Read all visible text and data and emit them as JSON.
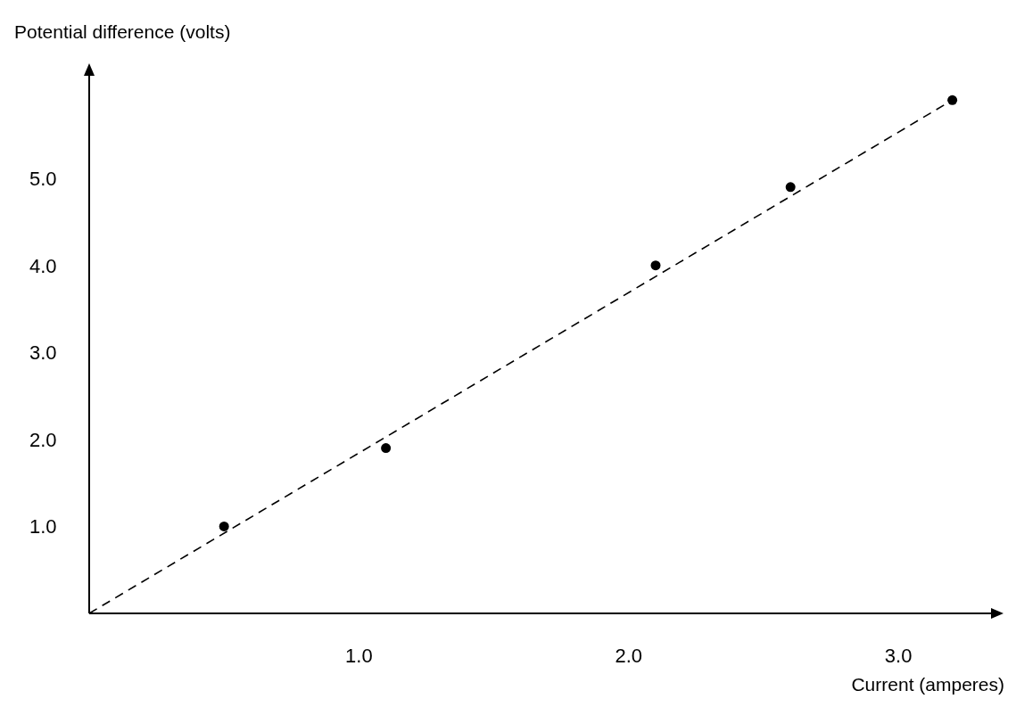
{
  "chart_data": {
    "type": "scatter",
    "xlabel": "Current (amperes)",
    "ylabel": "Potential difference (volts)",
    "xlim": [
      0,
      3.35
    ],
    "ylim": [
      0,
      6.2
    ],
    "xticks": [
      {
        "value": 1,
        "label": "1.0"
      },
      {
        "value": 2,
        "label": "2.0"
      },
      {
        "value": 3,
        "label": "3.0"
      }
    ],
    "yticks": [
      {
        "value": 1,
        "label": "1.0"
      },
      {
        "value": 2,
        "label": "2.0"
      },
      {
        "value": 3,
        "label": "3.0"
      },
      {
        "value": 4,
        "label": "4.0"
      },
      {
        "value": 5,
        "label": "5.0"
      }
    ],
    "grid": false,
    "series": [
      {
        "x": [
          0.5,
          1.1,
          2.1,
          2.6,
          3.2
        ],
        "values": [
          1.0,
          1.9,
          4.0,
          4.9,
          5.9
        ],
        "color": "#000000",
        "marker": "circle"
      },
      {
        "type": "line",
        "x": [
          0,
          3.2
        ],
        "values": [
          0,
          5.9
        ],
        "color": "#000000",
        "marker": "none",
        "line_style": "dashed"
      }
    ]
  }
}
